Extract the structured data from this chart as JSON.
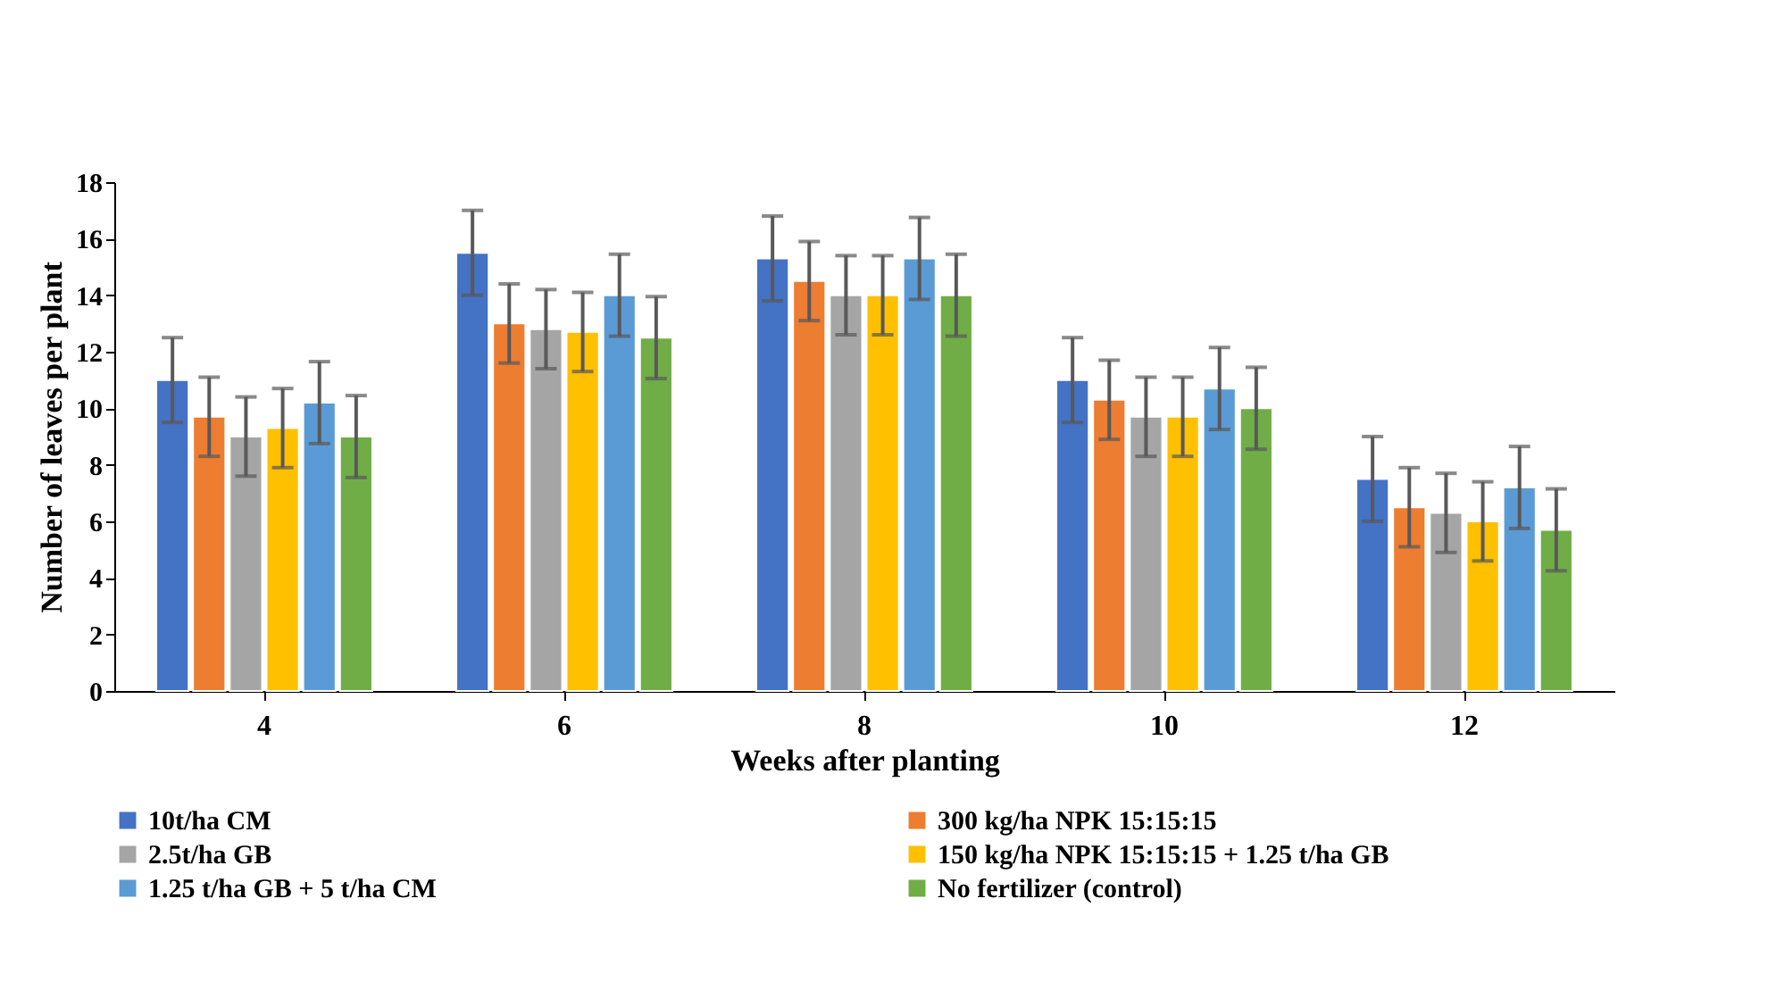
{
  "chart_data": {
    "type": "bar",
    "xlabel": "Weeks after planting",
    "ylabel": "Number of leaves per plant",
    "categories": [
      "4",
      "6",
      "8",
      "10",
      "12"
    ],
    "ylim": [
      0,
      18
    ],
    "yticks": [
      0,
      2,
      4,
      6,
      8,
      10,
      12,
      14,
      16,
      18
    ],
    "grid": false,
    "legend": "bottom",
    "series": [
      {
        "name": "10t/ha  CM",
        "color": "#4472c4",
        "values": [
          11,
          15.5,
          15.3,
          11,
          7.5
        ],
        "errors": [
          1.5,
          1.5,
          1.5,
          1.5,
          1.5
        ]
      },
      {
        "name": "300 kg/ha NPK 15:15:15",
        "color": "#ed7d31",
        "values": [
          9.7,
          13,
          14.5,
          10.3,
          6.5
        ],
        "errors": [
          1.4,
          1.4,
          1.4,
          1.4,
          1.4
        ]
      },
      {
        "name": "2.5t/ha GB",
        "color": "#a5a5a5",
        "values": [
          9,
          12.8,
          14,
          9.7,
          6.3
        ],
        "errors": [
          1.4,
          1.4,
          1.4,
          1.4,
          1.4
        ]
      },
      {
        "name": "150 kg/ha NPK 15:15:15 + 1.25 t/ha GB",
        "color": "#ffc000",
        "values": [
          9.3,
          12.7,
          14,
          9.7,
          6
        ],
        "errors": [
          1.4,
          1.4,
          1.4,
          1.4,
          1.4
        ]
      },
      {
        "name": "1.25 t/ha GB + 5 t/ha CM",
        "color": "#5b9bd5",
        "values": [
          10.2,
          14,
          15.3,
          10.7,
          7.2
        ],
        "errors": [
          1.45,
          1.45,
          1.45,
          1.45,
          1.45
        ]
      },
      {
        "name": "No fertilizer (control)",
        "color": "#70ad47",
        "values": [
          9,
          12.5,
          14,
          10,
          5.7
        ],
        "errors": [
          1.45,
          1.45,
          1.45,
          1.45,
          1.45
        ]
      }
    ]
  }
}
